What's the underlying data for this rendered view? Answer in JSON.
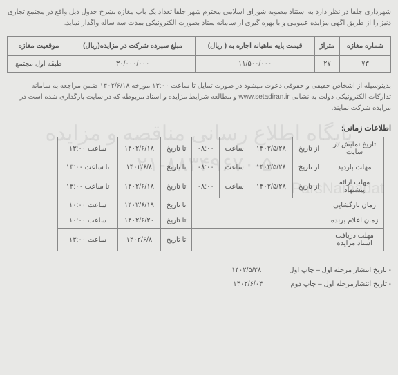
{
  "intro": "شهرداری جلفا در نظر دارد به استناد مصوبه شورای اسلامی محترم شهر جلفا تعداد یک باب مغازه بشرح جدول ذیل واقع در مجتمع تجاری دنیز را از طریق آگهی مزایده عمومی و با بهره گیری از سامانه ستاد بصورت الکترونیکی بمدت سه ساله واگذار نماید.",
  "table1": {
    "headers": [
      "شماره مغازه",
      "متراژ",
      "قیمت پایه ماهیانه اجاره به ( ریال)",
      "مبلغ سپرده شرکت در مزایده(ریال)",
      "موقعیت مغازه"
    ],
    "row": [
      "۷۳",
      "۲۷",
      "۱۱/۵۰۰/۰۰۰",
      "۳۰/۰۰۰/۰۰۰",
      "طبقه اول مجتمع"
    ]
  },
  "bodytext": "بدینوسیله از اشخاص حقیقی و حقوقی دعوت میشود در صورت تمایل تا ساعت ۱۳:۰۰ مورخه ۱۴۰۲/۶/۱۸ ضمن مراجعه به سامانه تدارکات الکترونیکی دولت به نشانی www.setadiran.ir و مطالعه شرایط مزایده و اسناد مربوطه که در سایت بارگذاری شده است در مزایده شرکت نمایند.",
  "sectionTitle": "اطلاعات زمانی:",
  "table2": {
    "rows": [
      [
        "تاریخ نمایش در سایت",
        "از تاریخ",
        "۱۴۰۲/۵/۲۸",
        "ساعت",
        "۰۸:۰۰",
        "تا تاریخ",
        "۱۴۰۲/۶/۱۸",
        "ساعت ۱۳:۰۰"
      ],
      [
        "مهلت بازدید",
        "از تاریخ",
        "۱۴۰۲/۵/۲۸",
        "ساعت",
        "۰۸:۰۰",
        "تا تاریخ",
        "۱۴۰۲/۶/۸",
        "تا ساعت ۱۳:۰۰"
      ],
      [
        "مهلت ارائه پیشنهاد",
        "از تاریخ",
        "۱۴۰۲/۵/۲۸",
        "ساعت",
        "۰۸:۰۰",
        "تا تاریخ",
        "۱۴۰۲/۶/۱۸",
        "تا ساعت ۱۳:۰۰"
      ],
      [
        "زمان بازگشایی",
        "",
        "",
        "",
        "",
        "تا تاریخ",
        "۱۴۰۲/۶/۱۹",
        "ساعت ۱۰:۰۰"
      ],
      [
        "زمان اعلام برنده",
        "",
        "",
        "",
        "",
        "تا تاریخ",
        "۱۴۰۲/۶/۲۰",
        "ساعت ۱۰:۰۰"
      ],
      [
        "مهلت دریافت اسناد مزایده",
        "",
        "",
        "",
        "",
        "تا تاریخ",
        "۱۴۰۲/۶/۸",
        "ساعت ۱۳:۰۰"
      ]
    ]
  },
  "footer": {
    "line1_label": "- تاریخ انتشار مرحله اول – چاپ اول",
    "line1_date": "۱۴۰۲/۵/۲۸",
    "line2_label": "- تاریخ انتشارمرحله اول – چاپ دوم",
    "line2_date": "۱۴۰۲/۶/۰۴"
  },
  "watermarks": {
    "wm_top": "ParsNamadat",
    "wm_main1": "پایگاه اطلاع رسانی مناقصه و مزایده",
    "wm_main2": "۰۲۱-۸۸۳۴۹۶۷۰-۵"
  }
}
